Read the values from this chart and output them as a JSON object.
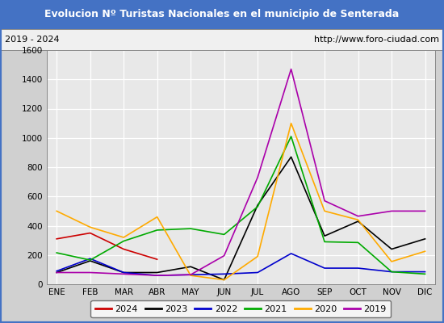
{
  "title": "Evolucion Nº Turistas Nacionales en el municipio de Senterada",
  "subtitle_left": "2019 - 2024",
  "subtitle_right": "http://www.foro-ciudad.com",
  "months": [
    "ENE",
    "FEB",
    "MAR",
    "ABR",
    "MAY",
    "JUN",
    "JUL",
    "AGO",
    "SEP",
    "OCT",
    "NOV",
    "DIC"
  ],
  "series": {
    "2024": [
      310,
      350,
      240,
      170,
      null,
      null,
      null,
      null,
      null,
      null,
      null,
      null
    ],
    "2023": [
      80,
      160,
      80,
      80,
      120,
      30,
      540,
      870,
      330,
      430,
      240,
      310
    ],
    "2022": [
      90,
      175,
      80,
      60,
      65,
      70,
      80,
      210,
      110,
      110,
      85,
      85
    ],
    "2021": [
      215,
      165,
      295,
      370,
      380,
      340,
      530,
      1010,
      290,
      285,
      85,
      70
    ],
    "2020": [
      500,
      390,
      320,
      460,
      60,
      30,
      190,
      1100,
      500,
      440,
      155,
      225
    ],
    "2019": [
      80,
      80,
      70,
      60,
      65,
      195,
      730,
      1470,
      570,
      465,
      500,
      500
    ]
  },
  "colors": {
    "2024": "#cc0000",
    "2023": "#000000",
    "2022": "#0000cc",
    "2021": "#00aa00",
    "2020": "#ffaa00",
    "2019": "#aa00aa"
  },
  "ylim": [
    0,
    1600
  ],
  "yticks": [
    0,
    200,
    400,
    600,
    800,
    1000,
    1200,
    1400,
    1600
  ],
  "title_bg_color": "#4472c4",
  "title_text_color": "#ffffff",
  "plot_bg_color": "#e8e8e8",
  "grid_color": "#ffffff",
  "outer_bg_color": "#d0d0d0",
  "border_color": "#4472c4",
  "legend_years": [
    "2024",
    "2023",
    "2022",
    "2021",
    "2020",
    "2019"
  ]
}
